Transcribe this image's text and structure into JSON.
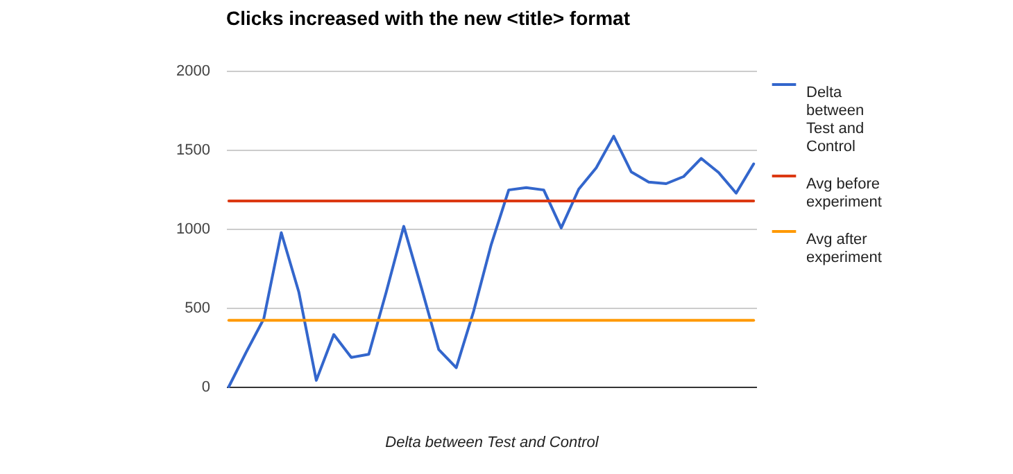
{
  "chart_data": {
    "type": "line",
    "title": "Clicks increased with the new <title> format",
    "xlabel": "Delta between Test and Control",
    "categories": [
      null,
      null,
      null,
      null,
      null,
      null,
      null,
      null,
      null,
      null,
      null,
      null,
      null,
      null,
      null,
      null,
      null,
      null,
      null,
      null,
      null,
      null,
      null,
      null,
      null,
      null,
      null,
      null,
      null,
      null,
      null
    ],
    "series": [
      {
        "name": "Delta between Test and Control",
        "color": "#3366cc",
        "values": [
          0,
          220,
          430,
          975,
          600,
          40,
          330,
          185,
          205,
          600,
          1015,
          630,
          235,
          120,
          480,
          900,
          1245,
          1260,
          1245,
          1005,
          1250,
          1385,
          1585,
          1360,
          1295,
          1285,
          1330,
          1445,
          1355,
          1225,
          1410
        ]
      },
      {
        "name": "Avg before experiment",
        "color": "#dc3912",
        "values": [
          1175,
          1175,
          1175,
          1175,
          1175,
          1175,
          1175,
          1175,
          1175,
          1175,
          1175,
          1175,
          1175,
          1175,
          1175,
          1175,
          1175,
          1175,
          1175,
          1175,
          1175,
          1175,
          1175,
          1175,
          1175,
          1175,
          1175,
          1175,
          1175,
          1175,
          1175
        ]
      },
      {
        "name": "Avg after experiment",
        "color": "#ff9900",
        "values": [
          420,
          420,
          420,
          420,
          420,
          420,
          420,
          420,
          420,
          420,
          420,
          420,
          420,
          420,
          420,
          420,
          420,
          420,
          420,
          420,
          420,
          420,
          420,
          420,
          420,
          420,
          420,
          420,
          420,
          420,
          420
        ]
      }
    ],
    "ylim": [
      0,
      2000
    ],
    "yticks": [
      0,
      500,
      1000,
      1500,
      2000
    ],
    "grid": "y",
    "legend": "right"
  }
}
